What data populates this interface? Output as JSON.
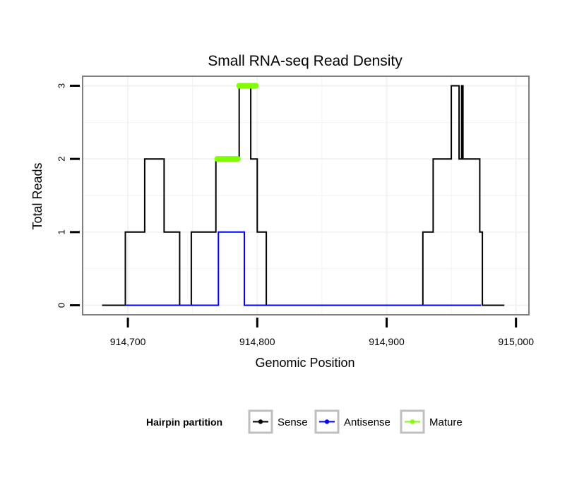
{
  "chart_data": {
    "type": "line",
    "title": "Small RNA-seq Read Density",
    "xlabel": "Genomic Position",
    "ylabel": "Total Reads",
    "xlim": [
      914665,
      915010
    ],
    "ylim": [
      -0.13,
      3.13
    ],
    "x_ticks": [
      914700,
      914800,
      914900,
      915000
    ],
    "x_tick_labels": [
      "914,700",
      "914,800",
      "914,900",
      "915,000"
    ],
    "y_ticks": [
      0,
      1,
      2,
      3
    ],
    "y_tick_labels": [
      "0",
      "1",
      "2",
      "3"
    ],
    "grid": true,
    "legend": {
      "title": "Hairpin partition",
      "position": "bottom",
      "entries": [
        "Sense",
        "Antisense",
        "Mature"
      ]
    },
    "series": [
      {
        "name": "Sense",
        "color": "#000000",
        "x": [
          914680,
          914698,
          914698,
          914713,
          914713,
          914728,
          914728,
          914740,
          914740,
          914749,
          914749,
          914768,
          914768,
          914786,
          914786,
          914795,
          914795,
          914800,
          914800,
          914807,
          914807,
          914928,
          914928,
          914936,
          914936,
          914950,
          914950,
          914956,
          914956,
          914958,
          914958,
          914959,
          914959,
          914960,
          914960,
          914972,
          914972,
          914974,
          914974,
          914991
        ],
        "y": [
          0,
          0,
          1,
          1,
          2,
          2,
          1,
          1,
          0,
          0,
          1,
          1,
          2,
          2,
          3,
          3,
          2,
          2,
          1,
          1,
          0,
          0,
          1,
          1,
          2,
          2,
          3,
          3,
          2,
          2,
          3,
          3,
          2,
          2,
          2,
          2,
          1,
          1,
          0,
          0
        ]
      },
      {
        "name": "Antisense",
        "color": "#0000ff",
        "x": [
          914698,
          914770,
          914770,
          914790,
          914790,
          914808,
          914928,
          914973
        ],
        "y": [
          0,
          0,
          1,
          1,
          0,
          0,
          0,
          0
        ]
      },
      {
        "name": "Mature",
        "color": "#7fff00",
        "segments": [
          {
            "x": [
              914769,
              914785
            ],
            "y": 2
          },
          {
            "x": [
              914786,
              914799
            ],
            "y": 3
          }
        ]
      }
    ]
  }
}
